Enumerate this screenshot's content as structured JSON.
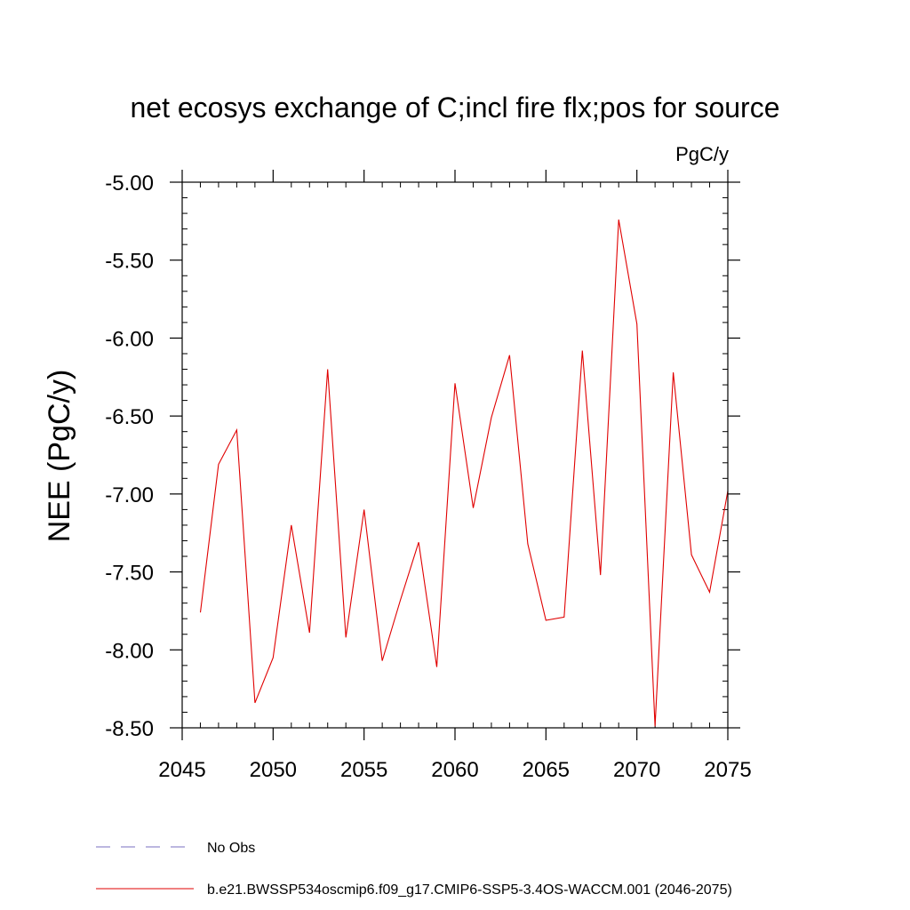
{
  "chart_data": {
    "type": "line",
    "title": "net ecosys exchange of C;incl fire flx;pos for source",
    "units": "PgC/y",
    "ylabel": "NEE  (PgC/y)",
    "xlabel": "",
    "xlim": [
      2045,
      2075
    ],
    "ylim": [
      -8.5,
      -5.0
    ],
    "x_ticks": [
      2045,
      2050,
      2055,
      2060,
      2065,
      2070,
      2075
    ],
    "x_tick_labels": [
      "2045",
      "2050",
      "2055",
      "2060",
      "2065",
      "2070",
      "2075"
    ],
    "y_ticks": [
      -5.0,
      -5.5,
      -6.0,
      -6.5,
      -7.0,
      -7.5,
      -8.0,
      -8.5
    ],
    "y_tick_labels": [
      "-5.00",
      "-5.50",
      "-6.00",
      "-6.50",
      "-7.00",
      "-7.50",
      "-8.00",
      "-8.50"
    ],
    "grid": false,
    "series": [
      {
        "name": "b.e21.BWSSP534oscmip6.f09_g17.CMIP6-SSP5-3.4OS-WACCM.001 (2046-2075)",
        "color": "#e00000",
        "x": [
          2046,
          2047,
          2048,
          2049,
          2050,
          2051,
          2052,
          2053,
          2054,
          2055,
          2056,
          2057,
          2058,
          2059,
          2060,
          2061,
          2062,
          2063,
          2064,
          2065,
          2066,
          2067,
          2068,
          2069,
          2070,
          2071,
          2072,
          2073,
          2074,
          2075
        ],
        "values": [
          -7.76,
          -6.81,
          -6.59,
          -8.34,
          -8.05,
          -7.2,
          -7.89,
          -6.2,
          -7.92,
          -7.1,
          -8.07,
          -7.68,
          -7.31,
          -8.11,
          -6.29,
          -7.09,
          -6.51,
          -6.11,
          -7.32,
          -7.81,
          -7.79,
          -6.08,
          -7.52,
          -5.24,
          -5.91,
          -8.49,
          -6.22,
          -7.39,
          -7.63,
          -6.98
        ]
      }
    ],
    "legend": [
      {
        "label": "No Obs",
        "color": "#7a6fc0",
        "style": "dashed"
      },
      {
        "label": "b.e21.BWSSP534oscmip6.f09_g17.CMIP6-SSP5-3.4OS-WACCM.001 (2046-2075)",
        "color": "#e00000",
        "style": "solid"
      }
    ]
  }
}
